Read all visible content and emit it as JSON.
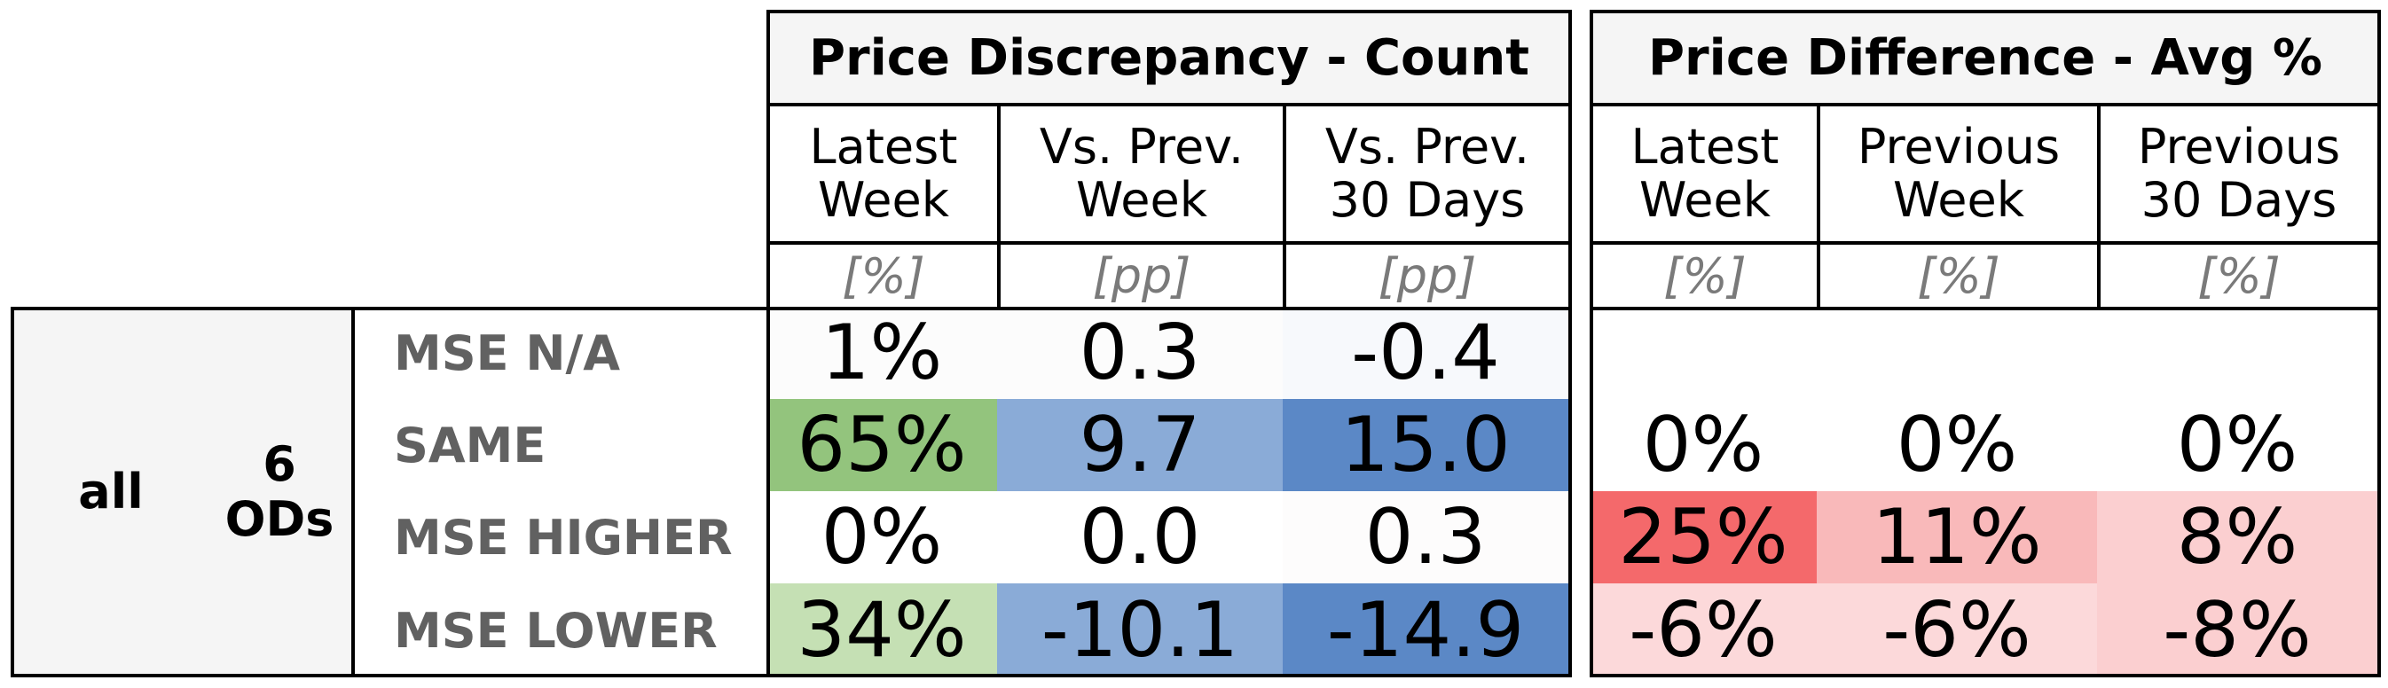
{
  "colors": {
    "green_strong": "#93c47d",
    "green_light": "#c5e0b4",
    "blue_mid": "#8aabd7",
    "blue_strong": "#5b88c6",
    "red_strong": "#f4696b",
    "red_mid": "#f9b9ba",
    "red_light": "#fcd9da",
    "white": "#ffffff"
  },
  "chart_data": {
    "type": "table",
    "group": {
      "segment": "all",
      "ods_count": "6",
      "ods_label": "ODs"
    },
    "blocks": [
      {
        "title": "Price Discrepancy - Count",
        "columns": [
          {
            "label": "Latest\nWeek",
            "unit": "[%]"
          },
          {
            "label": "Vs. Prev.\nWeek",
            "unit": "[pp]"
          },
          {
            "label": "Vs. Prev.\n30 Days",
            "unit": "[pp]"
          }
        ]
      },
      {
        "title": "Price Difference - Avg %",
        "columns": [
          {
            "label": "Latest\nWeek",
            "unit": "[%]"
          },
          {
            "label": "Previous\nWeek",
            "unit": "[%]"
          },
          {
            "label": "Previous\n30 Days",
            "unit": "[%]"
          }
        ]
      }
    ],
    "rows": [
      {
        "label": "MSE N/A",
        "count": [
          "1%",
          "0.3",
          "-0.4"
        ],
        "count_colors": [
          "#fcfcfc",
          "#fcfcfc",
          "#f7f9fc"
        ],
        "avg": [
          "",
          "",
          ""
        ],
        "avg_colors": [
          "#ffffff",
          "#ffffff",
          "#ffffff"
        ]
      },
      {
        "label": "SAME",
        "count": [
          "65%",
          "9.7",
          "15.0"
        ],
        "count_colors": [
          "#93c47d",
          "#8aabd7",
          "#5b88c6"
        ],
        "avg": [
          "0%",
          "0%",
          "0%"
        ],
        "avg_colors": [
          "#ffffff",
          "#ffffff",
          "#ffffff"
        ]
      },
      {
        "label": "MSE HIGHER",
        "count": [
          "0%",
          "0.0",
          "0.3"
        ],
        "count_colors": [
          "#ffffff",
          "#ffffff",
          "#fdfcfc"
        ],
        "avg": [
          "25%",
          "11%",
          "8%"
        ],
        "avg_colors": [
          "#f4696b",
          "#f9b9ba",
          "#fbcfd0"
        ]
      },
      {
        "label": "MSE LOWER",
        "count": [
          "34%",
          "-10.1",
          "-14.9"
        ],
        "count_colors": [
          "#c5e0b4",
          "#8aabd7",
          "#5b88c6"
        ],
        "avg": [
          "-6%",
          "-6%",
          "-8%"
        ],
        "avg_colors": [
          "#fcd9da",
          "#fcd9da",
          "#fbcfd0"
        ]
      }
    ]
  }
}
